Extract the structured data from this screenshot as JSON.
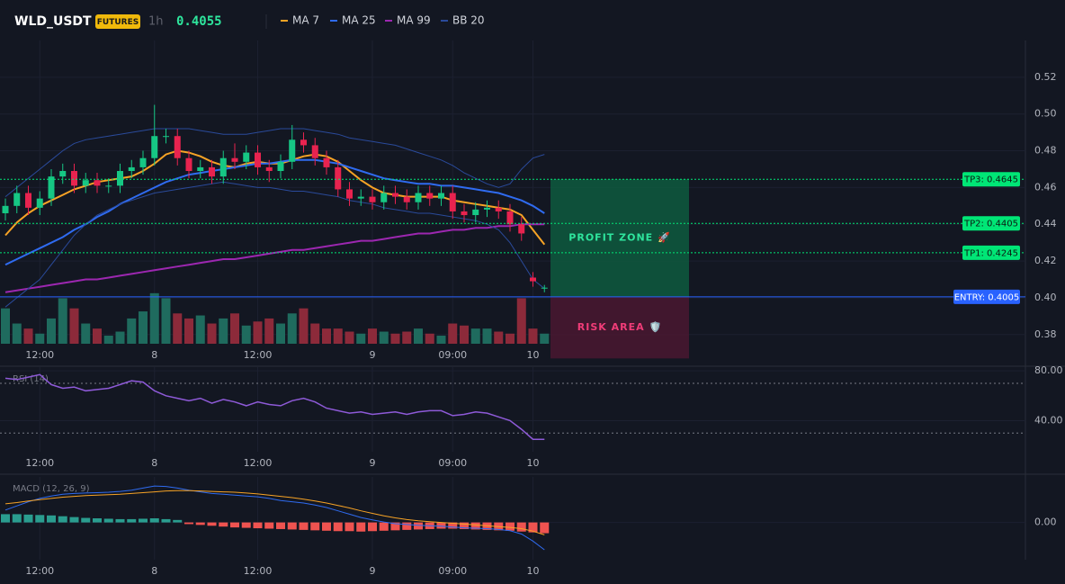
{
  "header": {
    "symbol": "WLD_USDT",
    "badge": "FUTURES",
    "interval": "1h",
    "price": "0.4055"
  },
  "chart_data": [
    {
      "type": "candlestick",
      "categories": [
        null,
        null,
        null,
        "12:00",
        null,
        null,
        null,
        null,
        null,
        null,
        null,
        null,
        null,
        "8",
        null,
        null,
        null,
        null,
        null,
        null,
        null,
        null,
        "12:00",
        null,
        null,
        null,
        null,
        null,
        null,
        null,
        null,
        null,
        "9",
        null,
        null,
        null,
        null,
        null,
        null,
        "09:00",
        null,
        null,
        null,
        null,
        null,
        null,
        "10",
        null
      ],
      "open": [
        0.446,
        0.45,
        0.457,
        0.449,
        0.454,
        0.466,
        0.469,
        0.461,
        0.464,
        0.461,
        0.461,
        0.469,
        0.471,
        0.476,
        0.488,
        0.488,
        0.476,
        0.469,
        0.471,
        0.466,
        0.476,
        0.474,
        0.479,
        0.471,
        0.469,
        0.474,
        0.486,
        0.483,
        0.476,
        0.471,
        0.459,
        0.454,
        0.455,
        0.452,
        0.457,
        0.455,
        0.452,
        0.457,
        0.454,
        0.457,
        0.447,
        0.445,
        0.448,
        0.449,
        0.447,
        0.44,
        0.411,
        0.405
      ],
      "high": [
        0.454,
        0.461,
        0.461,
        0.458,
        0.47,
        0.473,
        0.473,
        0.468,
        0.468,
        0.465,
        0.473,
        0.475,
        0.48,
        0.505,
        0.492,
        0.492,
        0.48,
        0.475,
        0.475,
        0.48,
        0.484,
        0.483,
        0.483,
        0.475,
        0.478,
        0.494,
        0.49,
        0.487,
        0.48,
        0.475,
        0.463,
        0.459,
        0.459,
        0.461,
        0.461,
        0.459,
        0.461,
        0.461,
        0.461,
        0.461,
        0.451,
        0.452,
        0.453,
        0.453,
        0.451,
        0.444,
        0.414,
        0.407
      ],
      "low": [
        0.442,
        0.446,
        0.445,
        0.445,
        0.45,
        0.462,
        0.457,
        0.457,
        0.457,
        0.457,
        0.457,
        0.465,
        0.467,
        0.472,
        0.484,
        0.472,
        0.465,
        0.465,
        0.462,
        0.462,
        0.47,
        0.47,
        0.467,
        0.463,
        0.465,
        0.47,
        0.479,
        0.472,
        0.467,
        0.455,
        0.45,
        0.45,
        0.448,
        0.448,
        0.451,
        0.448,
        0.448,
        0.45,
        0.45,
        0.443,
        0.441,
        0.441,
        0.444,
        0.443,
        0.436,
        0.431,
        0.406,
        0.403
      ],
      "close": [
        0.45,
        0.457,
        0.449,
        0.454,
        0.466,
        0.469,
        0.461,
        0.464,
        0.461,
        0.461,
        0.469,
        0.471,
        0.476,
        0.488,
        0.488,
        0.476,
        0.469,
        0.471,
        0.466,
        0.476,
        0.474,
        0.479,
        0.471,
        0.469,
        0.474,
        0.486,
        0.483,
        0.476,
        0.471,
        0.459,
        0.454,
        0.455,
        0.452,
        0.457,
        0.455,
        0.452,
        0.457,
        0.454,
        0.457,
        0.447,
        0.445,
        0.448,
        0.449,
        0.447,
        0.44,
        0.435,
        0.409,
        0.4055
      ],
      "up_color": "#16c784",
      "down_color": "#e8234f",
      "volume": [
        35,
        20,
        15,
        10,
        25,
        45,
        35,
        20,
        15,
        8,
        12,
        25,
        32,
        50,
        45,
        30,
        25,
        28,
        20,
        25,
        30,
        18,
        22,
        25,
        20,
        30,
        35,
        20,
        15,
        15,
        12,
        10,
        15,
        12,
        10,
        12,
        15,
        10,
        8,
        20,
        18,
        15,
        15,
        12,
        10,
        45,
        15,
        10
      ],
      "volume_lim": [
        0,
        300
      ],
      "volume_up_color": "#1f6b5e",
      "volume_down_color": "#8c2a3a",
      "series": [
        {
          "name": "MA 7",
          "color": "#f7a325",
          "values": [
            0.434,
            0.441,
            0.446,
            0.45,
            0.453,
            0.456,
            0.459,
            0.461,
            0.463,
            0.464,
            0.465,
            0.466,
            0.469,
            0.473,
            0.478,
            0.48,
            0.479,
            0.477,
            0.474,
            0.472,
            0.471,
            0.473,
            0.474,
            0.473,
            0.473,
            0.475,
            0.477,
            0.478,
            0.477,
            0.474,
            0.469,
            0.464,
            0.46,
            0.457,
            0.456,
            0.455,
            0.455,
            0.455,
            0.455,
            0.453,
            0.452,
            0.451,
            0.45,
            0.449,
            0.448,
            0.445,
            0.437,
            0.429
          ]
        },
        {
          "name": "MA 25",
          "color": "#2f6bf0",
          "values": [
            0.418,
            0.421,
            0.424,
            0.427,
            0.43,
            0.433,
            0.437,
            0.44,
            0.444,
            0.447,
            0.451,
            0.454,
            0.457,
            0.46,
            0.463,
            0.465,
            0.467,
            0.468,
            0.469,
            0.47,
            0.471,
            0.472,
            0.473,
            0.473,
            0.474,
            0.475,
            0.475,
            0.475,
            0.474,
            0.473,
            0.471,
            0.469,
            0.467,
            0.465,
            0.464,
            0.463,
            0.462,
            0.462,
            0.461,
            0.461,
            0.46,
            0.459,
            0.458,
            0.457,
            0.455,
            0.453,
            0.45,
            0.446
          ]
        },
        {
          "name": "MA 99",
          "color": "#9c27b0",
          "values": [
            0.403,
            0.404,
            0.405,
            0.406,
            0.407,
            0.408,
            0.409,
            0.41,
            0.41,
            0.411,
            0.412,
            0.413,
            0.414,
            0.415,
            0.416,
            0.417,
            0.418,
            0.419,
            0.42,
            0.421,
            0.421,
            0.422,
            0.423,
            0.424,
            0.425,
            0.426,
            0.426,
            0.427,
            0.428,
            0.429,
            0.43,
            0.431,
            0.431,
            0.432,
            0.433,
            0.434,
            0.435,
            0.435,
            0.436,
            0.437,
            0.437,
            0.438,
            0.438,
            0.439,
            0.439,
            0.44,
            0.44,
            0.44
          ]
        },
        {
          "name": "BB 20",
          "color": "#2a4a9a",
          "values": [
            0.455,
            0.46,
            0.465,
            0.47,
            0.475,
            0.48,
            0.484,
            0.486,
            0.487,
            0.488,
            0.489,
            0.49,
            0.491,
            0.492,
            0.492,
            0.492,
            0.492,
            0.491,
            0.49,
            0.489,
            0.489,
            0.489,
            0.49,
            0.491,
            0.492,
            0.492,
            0.492,
            0.491,
            0.49,
            0.489,
            0.487,
            0.486,
            0.485,
            0.484,
            0.483,
            0.481,
            0.479,
            0.477,
            0.475,
            0.472,
            0.468,
            0.465,
            0.462,
            0.46,
            0.462,
            0.47,
            0.476,
            0.478
          ],
          "lower": [
            0.395,
            0.4,
            0.405,
            0.41,
            0.418,
            0.426,
            0.434,
            0.44,
            0.445,
            0.448,
            0.451,
            0.453,
            0.455,
            0.457,
            0.458,
            0.459,
            0.46,
            0.461,
            0.462,
            0.463,
            0.462,
            0.461,
            0.46,
            0.46,
            0.459,
            0.458,
            0.458,
            0.457,
            0.456,
            0.455,
            0.453,
            0.452,
            0.451,
            0.449,
            0.448,
            0.447,
            0.446,
            0.446,
            0.445,
            0.444,
            0.443,
            0.442,
            0.44,
            0.437,
            0.43,
            0.42,
            0.41,
            0.405
          ]
        }
      ],
      "ylim": [
        0.375,
        0.54
      ],
      "yticks": [
        0.38,
        {
          "value": 0.4,
          "label": "0.40"
        },
        0.42,
        0.44,
        0.46,
        0.48,
        {
          "value": 0.5,
          "label": "0.50"
        },
        0.52
      ],
      "levels": [
        {
          "label": "TP3: 0.4645",
          "value": 0.4645,
          "color": "#00e676"
        },
        {
          "label": "TP2: 0.4405",
          "value": 0.4405,
          "color": "#00e676"
        },
        {
          "label": "TP1: 0.4245",
          "value": 0.4245,
          "color": "#00e676"
        },
        {
          "label": "ENTRY: 0.4005",
          "value": 0.4005,
          "color": "#2962ff"
        }
      ],
      "zones": [
        {
          "label": "PROFIT ZONE 🚀",
          "from": 0.4005,
          "to": 0.4645,
          "color": "#0e5a3e",
          "text_color": "#2ee59d"
        },
        {
          "label": "RISK AREA 🛡️",
          "from": 0.367,
          "to": 0.4005,
          "color": "#4a1730",
          "text_color": "#f03c78"
        }
      ]
    },
    {
      "type": "line",
      "title": "RSI (14)",
      "categories": [
        null,
        null,
        null,
        "12:00",
        null,
        null,
        null,
        null,
        null,
        null,
        null,
        null,
        null,
        "8",
        null,
        null,
        null,
        null,
        null,
        null,
        null,
        null,
        "12:00",
        null,
        null,
        null,
        null,
        null,
        null,
        null,
        null,
        null,
        "9",
        null,
        null,
        null,
        null,
        null,
        null,
        "09:00",
        null,
        null,
        null,
        null,
        null,
        null,
        "10",
        null
      ],
      "series": [
        {
          "color": "#8e5ad8",
          "values": [
            74,
            73,
            75,
            77,
            69,
            66,
            67,
            64,
            65,
            66,
            69,
            72,
            71,
            64,
            60,
            58,
            56,
            58,
            54,
            57,
            55,
            52,
            55,
            53,
            52,
            56,
            58,
            55,
            50,
            48,
            46,
            47,
            45,
            46,
            47,
            45,
            47,
            48,
            48,
            44,
            45,
            47,
            46,
            43,
            40,
            33,
            25,
            25
          ]
        }
      ],
      "levels": [
        70,
        30
      ],
      "ylim": [
        15,
        83
      ],
      "yticks": [
        {
          "value": 80,
          "label": "80.00"
        },
        {
          "value": 40,
          "label": "40.00"
        }
      ]
    },
    {
      "type": "macd",
      "title": "MACD (12, 26, 9)",
      "categories": [
        null,
        null,
        null,
        "12:00",
        null,
        null,
        null,
        null,
        null,
        null,
        null,
        null,
        null,
        "8",
        null,
        null,
        null,
        null,
        null,
        null,
        null,
        null,
        "12:00",
        null,
        null,
        null,
        null,
        null,
        null,
        null,
        null,
        null,
        "9",
        null,
        null,
        null,
        null,
        null,
        null,
        "09:00",
        null,
        null,
        null,
        null,
        null,
        null,
        "10",
        null
      ],
      "series": [
        {
          "color": "#2f6bf0",
          "values": [
            0.003,
            0.004,
            0.005,
            0.0058,
            0.0064,
            0.0068,
            0.007,
            0.0071,
            0.0072,
            0.0073,
            0.0075,
            0.0078,
            0.0083,
            0.0088,
            0.0087,
            0.0083,
            0.0078,
            0.0074,
            0.007,
            0.0068,
            0.0066,
            0.0064,
            0.0062,
            0.0058,
            0.0053,
            0.005,
            0.0047,
            0.0042,
            0.0036,
            0.0028,
            0.002,
            0.0012,
            0.0006,
            0.0001,
            -0.0003,
            -0.0005,
            -0.0007,
            -0.0008,
            -0.0009,
            -0.0011,
            -0.0013,
            -0.0014,
            -0.0015,
            -0.0017,
            -0.002,
            -0.0028,
            -0.0045,
            -0.0066
          ]
        },
        {
          "color": "#f7a325",
          "values": [
            0.0045,
            0.0048,
            0.0052,
            0.0055,
            0.0058,
            0.0061,
            0.0063,
            0.0065,
            0.0066,
            0.0067,
            0.0068,
            0.007,
            0.0072,
            0.0074,
            0.0076,
            0.0077,
            0.0077,
            0.0076,
            0.0075,
            0.0074,
            0.0073,
            0.0071,
            0.0069,
            0.0066,
            0.0063,
            0.006,
            0.0056,
            0.0052,
            0.0047,
            0.0041,
            0.0035,
            0.0028,
            0.0022,
            0.0016,
            0.0011,
            0.0007,
            0.0004,
            0.0002,
            0.0,
            -0.0002,
            -0.0004,
            -0.0006,
            -0.0008,
            -0.001,
            -0.0012,
            -0.0015,
            -0.0021,
            -0.003
          ]
        }
      ],
      "histogram": [
        0.002,
        0.002,
        0.0019,
        0.0018,
        0.0017,
        0.0015,
        0.0013,
        0.0011,
        0.001,
        0.0009,
        0.0008,
        0.0008,
        0.0009,
        0.001,
        0.0008,
        0.0006,
        -0.0004,
        -0.0006,
        -0.0008,
        -0.001,
        -0.0012,
        -0.0013,
        -0.0014,
        -0.0015,
        -0.0016,
        -0.0017,
        -0.0018,
        -0.0019,
        -0.002,
        -0.0021,
        -0.0021,
        -0.0022,
        -0.0021,
        -0.002,
        -0.0019,
        -0.0018,
        -0.0017,
        -0.0016,
        -0.0015,
        -0.0015,
        -0.0016,
        -0.0017,
        -0.0018,
        -0.0019,
        -0.002,
        -0.0022,
        -0.0024,
        -0.0026
      ],
      "histogram_up_color": "#2a9d8f",
      "histogram_down_color": "#ef5350",
      "ylim": [
        -0.009,
        0.011
      ],
      "yticks": [
        {
          "value": 0,
          "label": "0.00"
        }
      ]
    }
  ]
}
